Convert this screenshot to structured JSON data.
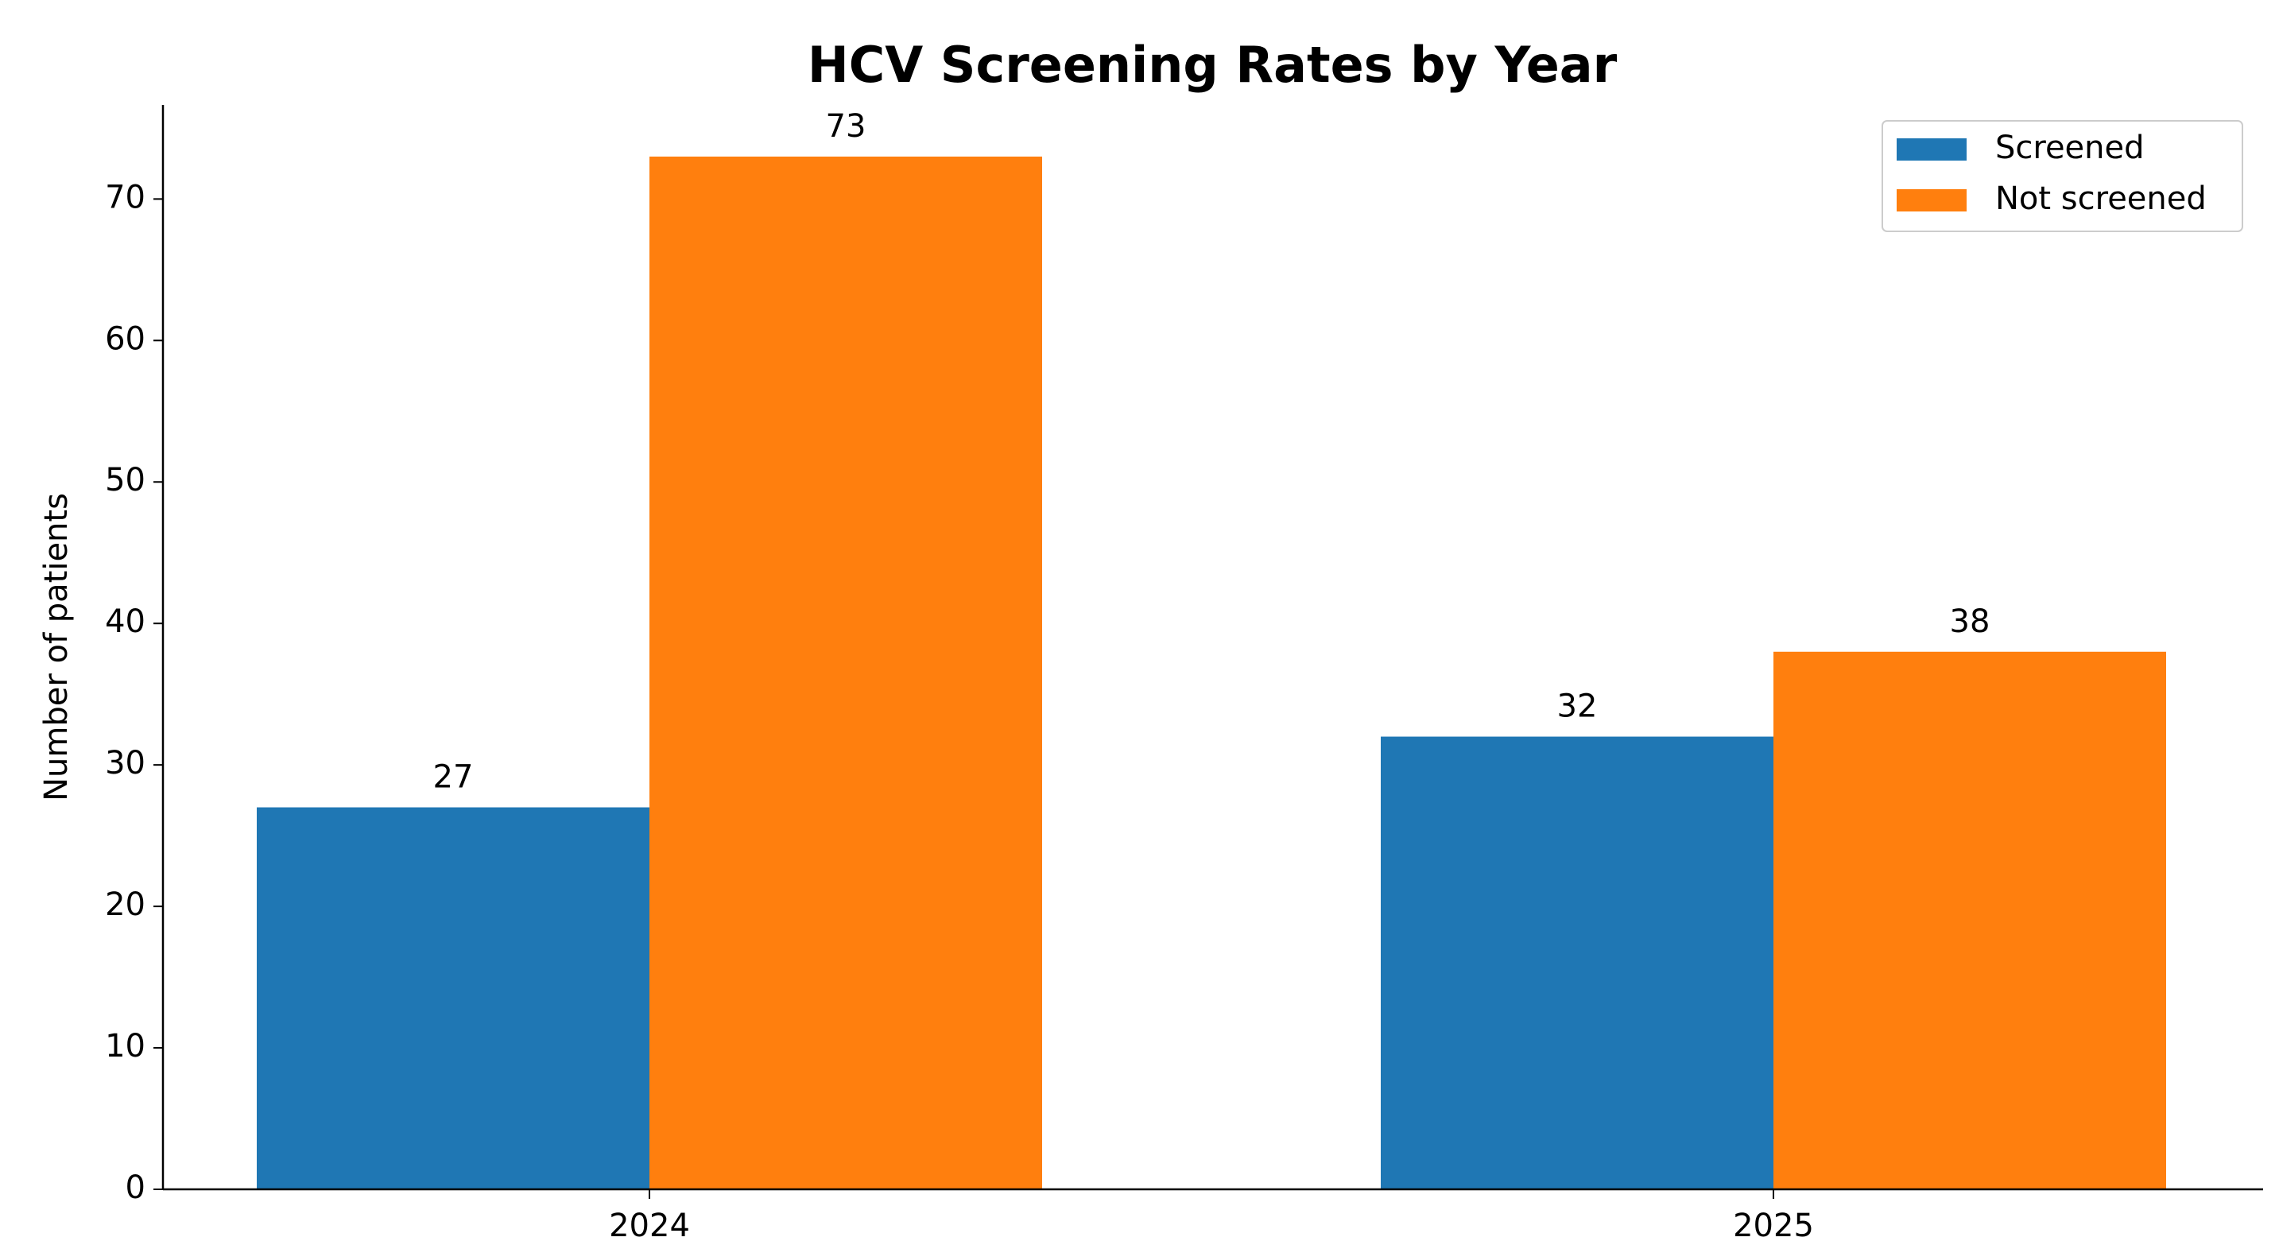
{
  "chart_data": {
    "type": "bar",
    "title": "HCV Screening Rates by Year",
    "ylabel": "Number of patients",
    "categories": [
      "2024",
      "2025"
    ],
    "series": [
      {
        "name": "Screened",
        "color": "#1f77b4",
        "values": [
          27,
          32
        ]
      },
      {
        "name": "Not screened",
        "color": "#ff7f0e",
        "values": [
          73,
          38
        ]
      }
    ],
    "ylim": [
      0,
      76.65
    ],
    "yticks": [
      0,
      10,
      20,
      30,
      40,
      50,
      60,
      70
    ],
    "legend": "upper right",
    "grid": false
  }
}
